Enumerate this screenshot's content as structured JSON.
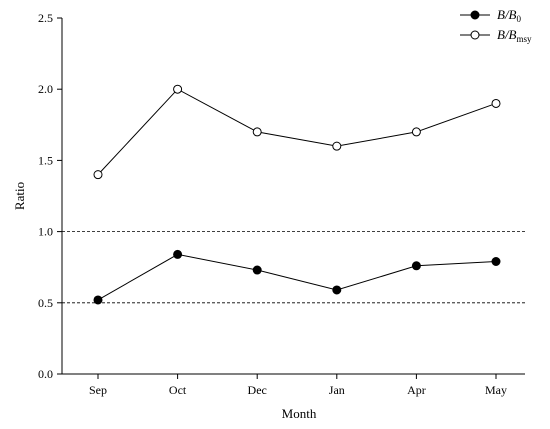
{
  "chart_data": {
    "type": "line",
    "title": "",
    "xlabel": "Month",
    "ylabel": "Ratio",
    "categories": [
      "Sep",
      "Oct",
      "Dec",
      "Jan",
      "Apr",
      "May"
    ],
    "ylim": [
      0,
      2.5
    ],
    "yticks": [
      "0.0",
      "0.5",
      "1.0",
      "1.5",
      "2.0",
      "2.5"
    ],
    "reference_lines": [
      0.5,
      1.0
    ],
    "grid": false,
    "legend_position": "top-right",
    "series": [
      {
        "name": "B/B0",
        "legend": {
          "main": "B/B",
          "sub": "0"
        },
        "marker": "filled-circle",
        "values": [
          0.52,
          0.84,
          0.73,
          0.59,
          0.76,
          0.79
        ]
      },
      {
        "name": "B/Bmsy",
        "legend": {
          "main": "B/B",
          "sub": "msy"
        },
        "marker": "open-circle",
        "values": [
          1.4,
          2.0,
          1.7,
          1.6,
          1.7,
          1.9
        ]
      }
    ]
  }
}
